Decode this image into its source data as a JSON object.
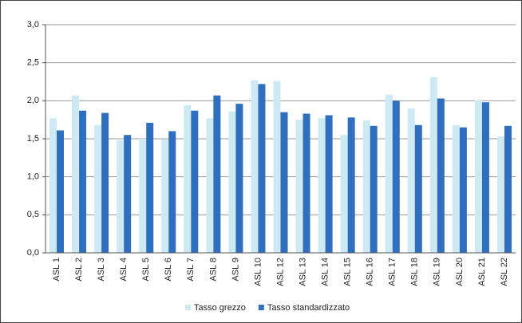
{
  "chart_data": {
    "type": "bar",
    "categories": [
      "ASL 1",
      "ASL 2",
      "ASL 3",
      "ASL 4",
      "ASL 5",
      "ASL 6",
      "ASL 7",
      "ASL 8",
      "ASL 9",
      "ASL 10",
      "ASL 12",
      "ASL 13",
      "ASL 14",
      "ASL 15",
      "ASL 16",
      "ASL 17",
      "ASL 18",
      "ASL 19",
      "ASL 20",
      "ASL 21",
      "ASL 22"
    ],
    "series": [
      {
        "name": "Tasso grezzo",
        "color": "#cde9f4",
        "values": [
          1.77,
          2.07,
          1.68,
          1.48,
          1.5,
          1.49,
          1.94,
          1.77,
          1.86,
          2.27,
          2.26,
          1.75,
          1.77,
          1.55,
          1.74,
          2.08,
          1.9,
          2.31,
          1.68,
          2.01,
          1.53
        ]
      },
      {
        "name": "Tasso standardizzato",
        "color": "#2f6fbd",
        "values": [
          1.61,
          1.87,
          1.84,
          1.55,
          1.71,
          1.6,
          1.87,
          2.07,
          1.96,
          2.22,
          1.85,
          1.83,
          1.81,
          1.78,
          1.67,
          2.0,
          1.68,
          2.03,
          1.65,
          1.98,
          1.67
        ]
      }
    ],
    "ylim": [
      0,
      3
    ],
    "yticks": [
      {
        "value": 0,
        "label": "0,0"
      },
      {
        "value": 0.5,
        "label": "0,5"
      },
      {
        "value": 1,
        "label": "1,0"
      },
      {
        "value": 1.5,
        "label": "1,5"
      },
      {
        "value": 2,
        "label": "2,0"
      },
      {
        "value": 2.5,
        "label": "2,5"
      },
      {
        "value": 3,
        "label": "3,0"
      }
    ],
    "grid": true,
    "legend": "bottom"
  }
}
